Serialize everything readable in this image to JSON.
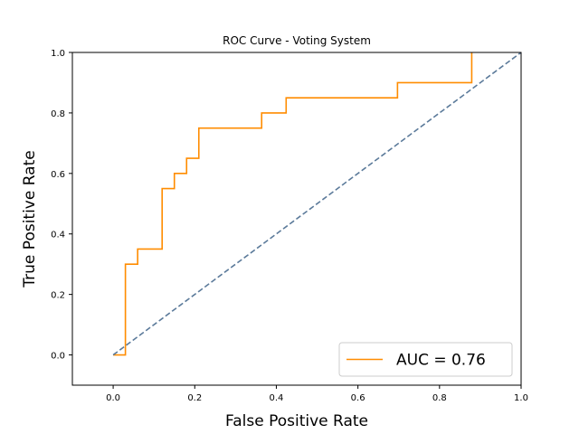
{
  "chart_data": {
    "type": "line",
    "title": "ROC Curve - Voting System",
    "xlabel": "False Positive Rate",
    "ylabel": "True Positive Rate",
    "xlim": [
      -0.1,
      1.0
    ],
    "ylim": [
      -0.1,
      1.0
    ],
    "x_ticks": [
      "0.0",
      "0.2",
      "0.4",
      "0.6",
      "0.8",
      "1.0"
    ],
    "y_ticks": [
      "0.0",
      "0.2",
      "0.4",
      "0.6",
      "0.8",
      "1.0"
    ],
    "grid": false,
    "legend_location": "lower-right",
    "series": [
      {
        "name": "AUC = 0.76",
        "color": "#ff8c00",
        "style": "step",
        "x": [
          0.0,
          0.03,
          0.03,
          0.06,
          0.06,
          0.12,
          0.12,
          0.15,
          0.15,
          0.18,
          0.18,
          0.21,
          0.21,
          0.364,
          0.364,
          0.424,
          0.424,
          0.697,
          0.697,
          0.879,
          0.879
        ],
        "y": [
          0.0,
          0.0,
          0.3,
          0.3,
          0.35,
          0.35,
          0.55,
          0.55,
          0.6,
          0.6,
          0.65,
          0.65,
          0.75,
          0.75,
          0.8,
          0.8,
          0.85,
          0.85,
          0.9,
          0.9,
          1.0
        ]
      },
      {
        "color": "#5b7a9a",
        "style": "dashed",
        "x": [
          0.0,
          1.0
        ],
        "y": [
          0.0,
          1.0
        ]
      }
    ]
  }
}
